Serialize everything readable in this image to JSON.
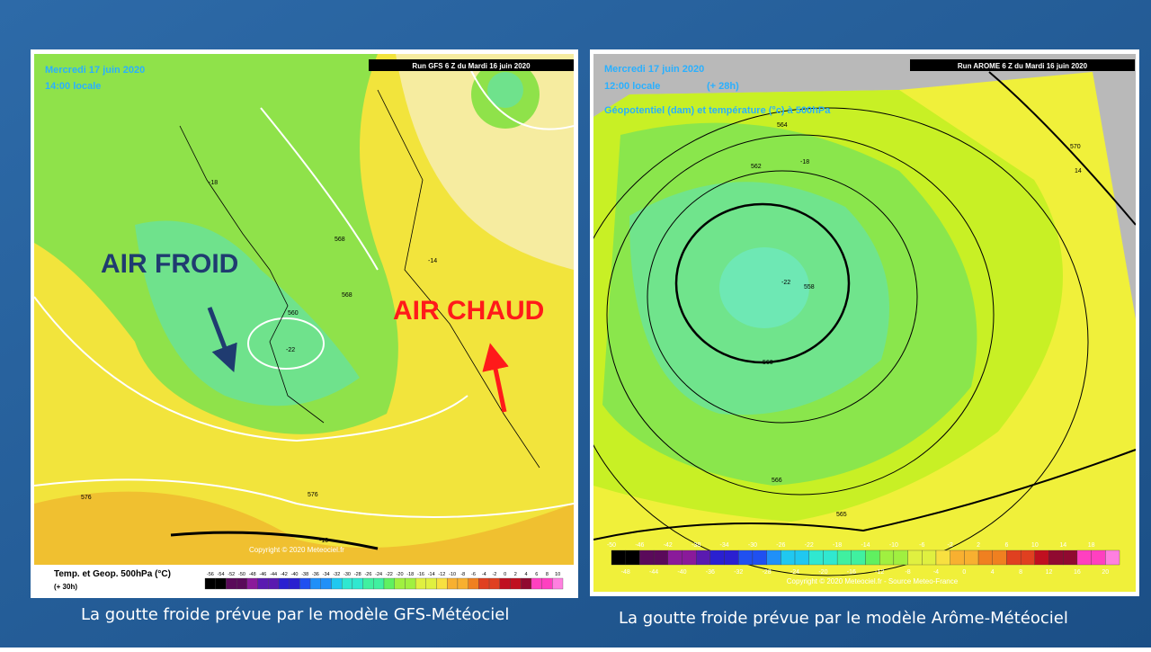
{
  "left_map": {
    "date": "Mercredi 17 juin 2020",
    "time": "14:00 locale",
    "run": "Run GFS 6 Z du Mardi 16 juin 2020",
    "label_cold": "AIR FROID",
    "label_warm": "AIR CHAUD",
    "legend_title": "Temp. et Geop. 500hPa (°C)",
    "lead": "(+ 30h)",
    "copyright": "Copyright © 2020 Meteociel.fr",
    "scale": [
      -56,
      -54,
      -52,
      -50,
      -48,
      -46,
      -44,
      -42,
      -40,
      -38,
      -36,
      -34,
      -32,
      -30,
      -28,
      -26,
      -24,
      -22,
      -20,
      -18,
      -16,
      -14,
      -12,
      -10,
      -8,
      -6,
      -4,
      -2,
      0,
      2,
      4,
      6,
      8,
      10
    ],
    "contour_labels": [
      "560",
      "-22",
      "568",
      "576",
      "576",
      "-18",
      "-14",
      "-10",
      "568"
    ]
  },
  "right_map": {
    "date": "Mercredi 17 juin 2020",
    "time": "12:00 locale",
    "lead": "(+ 28h)",
    "subtitle": "Géopotentiel (dam) et température (°c) à 500hPa",
    "run": "Run AROME 6 Z du Mardi 16 juin 2020",
    "copyright": "Copyright © 2020 Meteociel.fr - Source Meteo-France",
    "scale_top": [
      -50,
      -46,
      -42,
      -38,
      -34,
      -30,
      -26,
      -22,
      -18,
      -14,
      -10,
      -6,
      -2,
      2,
      6,
      10,
      14,
      18
    ],
    "scale_bottom": [
      -48,
      -44,
      -40,
      -36,
      -32,
      -28,
      -24,
      -20,
      -16,
      -12,
      -8,
      -4,
      0,
      4,
      8,
      12,
      16,
      20
    ],
    "contour_labels": [
      "564",
      "562",
      "560",
      "558",
      "-22",
      "566",
      "570",
      "-18",
      "14",
      "565"
    ]
  },
  "captions": [
    "La goutte froide prévue par le modèle GFS-Météociel",
    "La goutte froide prévue par le modèle Arôme-Météociel"
  ]
}
